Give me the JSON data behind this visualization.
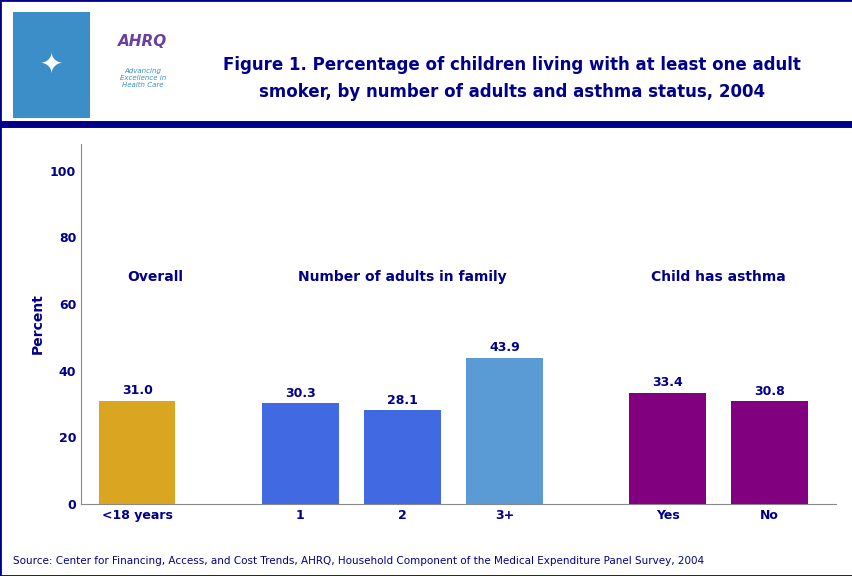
{
  "categories": [
    "<18 years",
    "1",
    "2",
    "3+",
    "Yes",
    "No"
  ],
  "values": [
    31.0,
    30.3,
    28.1,
    43.9,
    33.4,
    30.8
  ],
  "bar_colors": [
    "#DAA520",
    "#4169E1",
    "#4169E1",
    "#5B9BD5",
    "#800080",
    "#800080"
  ],
  "group_labels": [
    "Overall",
    "Number of adults in family",
    "Child has asthma"
  ],
  "group_label_color": "#00008B",
  "title_line1": "Figure 1. Percentage of children living with at least one adult",
  "title_line2": "smoker, by number of adults and asthma status, 2004",
  "title_color": "#00008B",
  "title_fontsize": 12,
  "ylabel": "Percent",
  "ylabel_color": "#00008B",
  "yticks": [
    0,
    20,
    40,
    60,
    80,
    100
  ],
  "ylim": [
    0,
    108
  ],
  "value_label_color": "#00008B",
  "value_label_fontsize": 9,
  "tick_label_color": "#00008B",
  "tick_label_fontsize": 9,
  "source_text": "Source: Center for Financing, Access, and Cost Trends, AHRQ, Household Component of the Medical Expenditure Panel Survey, 2004",
  "source_color": "#00008B",
  "source_fontsize": 7.5,
  "background_color": "#FFFFFF",
  "divider_color": "#00008B",
  "x_positions": [
    0,
    1.6,
    2.6,
    3.6,
    5.2,
    6.2
  ],
  "bar_width": 0.75,
  "header_bg": "#FFFFFF",
  "header_border_color": "#00008B",
  "logo_left_bg": "#3B8EC8",
  "logo_right_bg": "#FFFFFF",
  "ahrq_text_color": "#6B3FA0",
  "advancing_text_color": "#3B8EC8",
  "group_label_fontsize": 10
}
